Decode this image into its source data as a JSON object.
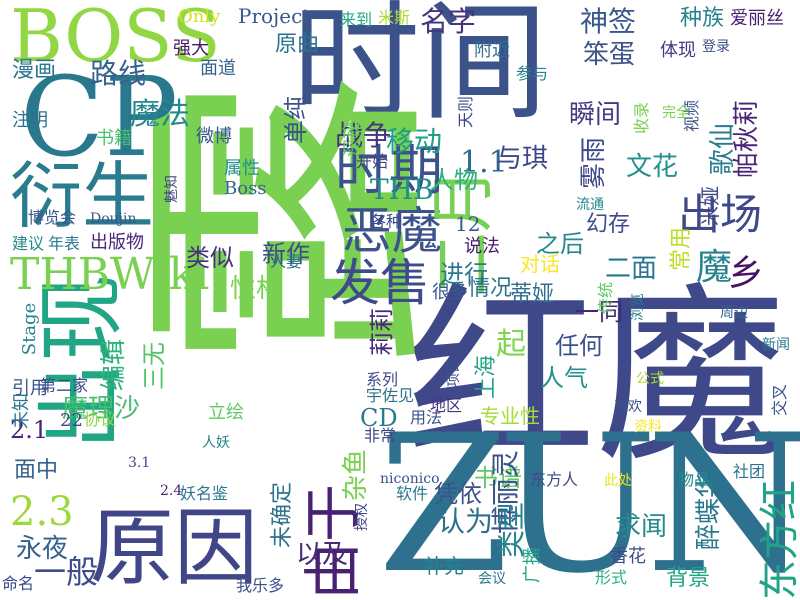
{
  "words": [
    {
      "text": "时间",
      "color": "#3b528b"
    },
    {
      "text": "红魔",
      "color": "#3f4889"
    },
    {
      "text": "ZUN",
      "color": "#2d718e"
    },
    {
      "text": "露",
      "color": "#7ad151"
    },
    {
      "text": "出现",
      "color": "#21a685"
    },
    {
      "text": "CP",
      "color": "#2a788e"
    },
    {
      "text": "BOSS",
      "color": "#90d743"
    },
    {
      "text": "衍生",
      "color": "#287c8e"
    },
    {
      "text": "原因",
      "color": "#404688"
    },
    {
      "text": "发售",
      "color": "#3e4a89"
    },
    {
      "text": "恶魔",
      "color": "#3b528b"
    },
    {
      "text": "由于",
      "color": "#482173"
    },
    {
      "text": "二月",
      "color": "#75d054"
    },
    {
      "text": "THBWiki",
      "color": "#7ad151"
    },
    {
      "text": "时期",
      "color": "#3b528b"
    },
    {
      "text": "出场",
      "color": "#3e4989"
    },
    {
      "text": "东方红",
      "color": "#20a386"
    },
    {
      "text": "THB",
      "color": "#228c8d"
    },
    {
      "text": "战争",
      "color": "#46337f"
    },
    {
      "text": "移动",
      "color": "#1f9e89"
    },
    {
      "text": "魔法",
      "color": "#23898e"
    },
    {
      "text": "路线",
      "color": "#34618d"
    },
    {
      "text": "漫画",
      "color": "#2a768e"
    },
    {
      "text": "1.1",
      "color": "#31688e"
    },
    {
      "text": "神签",
      "color": "#38588c"
    },
    {
      "text": "种族",
      "color": "#26828e"
    },
    {
      "text": "爱丽丝",
      "color": "#481f70"
    },
    {
      "text": "名字",
      "color": "#46337f"
    },
    {
      "text": "人物",
      "color": "#2ab07f"
    },
    {
      "text": "与琪",
      "color": "#3f4788"
    },
    {
      "text": "雾雨",
      "color": "#3e4989"
    },
    {
      "text": "歌仙",
      "color": "#287d8e"
    },
    {
      "text": "帕秋莉",
      "color": "#482475"
    },
    {
      "text": "米娅",
      "color": "#3f4788"
    },
    {
      "text": "乡",
      "color": "#471365"
    },
    {
      "text": "二面",
      "color": "#2a768e"
    },
    {
      "text": "魔",
      "color": "#26828e"
    },
    {
      "text": "12",
      "color": "#375a8c"
    },
    {
      "text": "进行",
      "color": "#29798e"
    },
    {
      "text": "之后",
      "color": "#23898e"
    },
    {
      "text": "幻存",
      "color": "#3e4a89"
    },
    {
      "text": "常用",
      "color": "#bddf26"
    },
    {
      "text": "文花",
      "color": "#21918c"
    },
    {
      "text": "新作",
      "color": "#3e4a89"
    },
    {
      "text": "类似",
      "color": "#46307e"
    },
    {
      "text": "性格",
      "color": "#7ad151"
    },
    {
      "text": "情况",
      "color": "#2c738e"
    },
    {
      "text": "蒂娅",
      "color": "#2e6e8e"
    },
    {
      "text": "对话",
      "color": "#fde725"
    },
    {
      "text": "说法",
      "color": "#481a6c"
    },
    {
      "text": "很多",
      "color": "#38598c"
    },
    {
      "text": "一同",
      "color": "#482475"
    },
    {
      "text": "任何",
      "color": "#3b518b"
    },
    {
      "text": "起",
      "color": "#7fd34e"
    },
    {
      "text": "人气",
      "color": "#21918c"
    },
    {
      "text": "上海",
      "color": "#21a585"
    },
    {
      "text": "莉莉",
      "color": "#482878"
    },
    {
      "text": "三无",
      "color": "#52c569"
    },
    {
      "text": "魔理沙",
      "color": "#44bf70"
    },
    {
      "text": "编辑",
      "color": "#2db27d"
    },
    {
      "text": "CD",
      "color": "#2a788e"
    },
    {
      "text": "杂鱼",
      "color": "#7ad151"
    },
    {
      "text": "2.1",
      "color": "#482475"
    },
    {
      "text": "2.3",
      "color": "#9dd93b"
    },
    {
      "text": "永夜",
      "color": "#33638d"
    },
    {
      "text": "一般",
      "color": "#3e4c8a"
    },
    {
      "text": "面中",
      "color": "#355f8d"
    },
    {
      "text": "书谱",
      "color": "#5ec962"
    },
    {
      "text": "博丽灵",
      "color": "#3b528b"
    },
    {
      "text": "认为",
      "color": "#2e6e8e"
    },
    {
      "text": "类型",
      "color": "#25848e"
    },
    {
      "text": "醉蝶华",
      "color": "#2a788e"
    },
    {
      "text": "求闻",
      "color": "#238a8d"
    },
    {
      "text": "凭依",
      "color": "#3b528b"
    },
    {
      "text": "以及",
      "color": "#482878"
    },
    {
      "text": "未确定",
      "color": "#2c728e"
    },
    {
      "text": "补充",
      "color": "#26828e"
    },
    {
      "text": "背景",
      "color": "#20a486"
    },
    {
      "text": "广播",
      "color": "#20a386"
    },
    {
      "text": "香花",
      "color": "#3e4a89"
    },
    {
      "text": "Project",
      "color": "#38588c"
    },
    {
      "text": "Only",
      "color": "#d2e21b"
    },
    {
      "text": "来到",
      "color": "#22a884"
    },
    {
      "text": "米斯",
      "color": "#addc30"
    },
    {
      "text": "原曲",
      "color": "#2c718e"
    },
    {
      "text": "强大",
      "color": "#48186a"
    },
    {
      "text": "面道",
      "color": "#33638d"
    },
    {
      "text": "附近",
      "color": "#2d708e"
    },
    {
      "text": "笨蛋",
      "color": "#3b528b"
    },
    {
      "text": "体现",
      "color": "#443a83"
    },
    {
      "text": "单纯",
      "color": "#3b528b"
    },
    {
      "text": "参与",
      "color": "#26828e"
    },
    {
      "text": "登录",
      "color": "#3c4f8a"
    },
    {
      "text": "瞬间",
      "color": "#443a83"
    },
    {
      "text": "注明",
      "color": "#2d708e"
    },
    {
      "text": "书籍",
      "color": "#46c06f"
    },
    {
      "text": "微博",
      "color": "#38588c"
    },
    {
      "text": "属性",
      "color": "#21918c"
    },
    {
      "text": "开始",
      "color": "#414487"
    },
    {
      "text": "深秘",
      "color": "#65cb5e"
    },
    {
      "text": "天则",
      "color": "#3f4788"
    },
    {
      "text": "Boss",
      "color": "#32648e"
    },
    {
      "text": "视频",
      "color": "#3b528b"
    },
    {
      "text": "收录",
      "color": "#7ad151"
    },
    {
      "text": "流通",
      "color": "#238a8d"
    },
    {
      "text": "浏览",
      "color": "#29798e"
    },
    {
      "text": "建议",
      "color": "#23898e"
    },
    {
      "text": "年表",
      "color": "#2a778e"
    },
    {
      "text": "出版物",
      "color": "#482878"
    },
    {
      "text": "博览会",
      "color": "#38588c"
    },
    {
      "text": "Doujin",
      "color": "#3b528b"
    },
    {
      "text": "魅知",
      "color": "#3f4788"
    },
    {
      "text": "各种",
      "color": "#3e4989"
    },
    {
      "text": "人妻",
      "color": "#2e6e8e"
    },
    {
      "text": "引用",
      "color": "#3b528b"
    },
    {
      "text": "Stage",
      "color": "#26828e"
    },
    {
      "text": "未知",
      "color": "#2a768e"
    },
    {
      "text": "第二家",
      "color": "#3e4a89"
    },
    {
      "text": "立绘",
      "color": "#5ec962"
    },
    {
      "text": "宇佐见",
      "color": "#2c718e"
    },
    {
      "text": "系列",
      "color": "#3e4a89"
    },
    {
      "text": "用法",
      "color": "#3b528b"
    },
    {
      "text": "专业性",
      "color": "#a5db36"
    },
    {
      "text": "地区",
      "color": "#46337f"
    },
    {
      "text": "项目",
      "color": "#3b518b"
    },
    {
      "text": "非常",
      "color": "#404688"
    },
    {
      "text": "22",
      "color": "#3f4788"
    },
    {
      "text": "协议",
      "color": "#8fd744"
    },
    {
      "text": "3.1",
      "color": "#3e4a89"
    },
    {
      "text": "2.4",
      "color": "#482475"
    },
    {
      "text": "妖名鉴",
      "color": "#2a768e"
    },
    {
      "text": "软件",
      "color": "#2a788e"
    },
    {
      "text": "授权",
      "color": "#3e4989"
    },
    {
      "text": "niconico",
      "color": "#3b528b"
    },
    {
      "text": "东方人",
      "color": "#3e4a89"
    },
    {
      "text": "社团",
      "color": "#2c728e"
    },
    {
      "text": "物品",
      "color": "#238a8d"
    },
    {
      "text": "命名",
      "color": "#3e4a89"
    },
    {
      "text": "我乐多",
      "color": "#3b528b"
    },
    {
      "text": "会议",
      "color": "#2a788e"
    },
    {
      "text": "形式",
      "color": "#2db27d"
    },
    {
      "text": "交叉",
      "color": "#3b528b"
    },
    {
      "text": "新闻",
      "color": "#2a788e"
    },
    {
      "text": "资料",
      "color": "#fde725"
    },
    {
      "text": "周边",
      "color": "#32648e"
    },
    {
      "text": "传统",
      "color": "#5ec962"
    },
    {
      "text": "公式",
      "color": "#addc30"
    },
    {
      "text": "完全",
      "color": "#7ad151"
    },
    {
      "text": "此处",
      "color": "#e7e419"
    },
    {
      "text": "喜欢",
      "color": "#3b528b"
    },
    {
      "text": "人妖",
      "color": "#26828e"
    }
  ]
}
